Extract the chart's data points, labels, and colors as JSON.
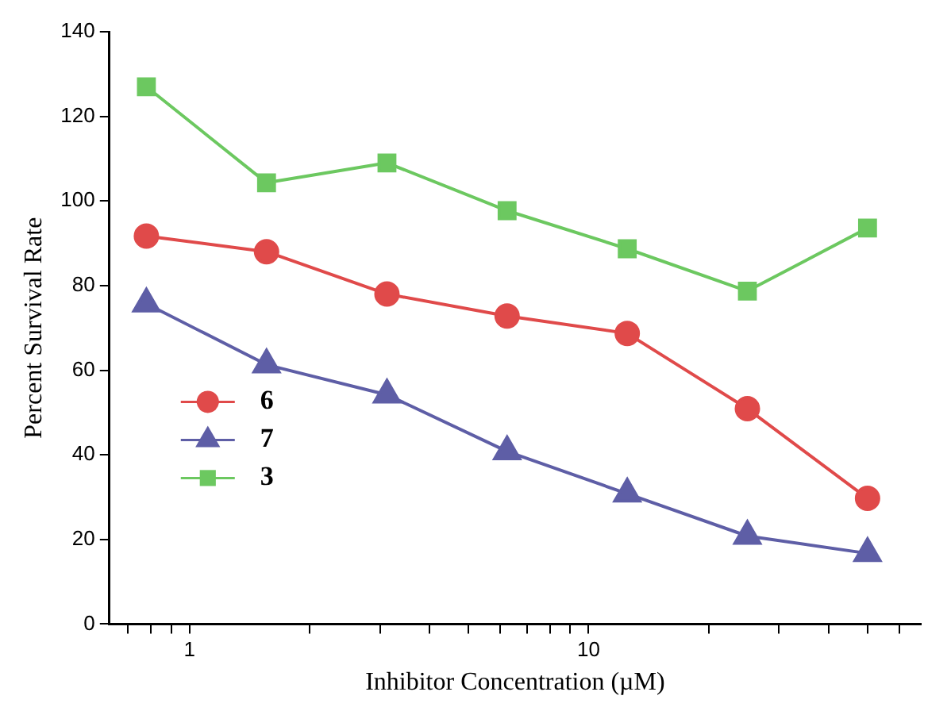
{
  "chart_data": {
    "type": "line",
    "xlabel": "Inhibitor Concentration (µM)",
    "ylabel": "Percent Survival Rate",
    "x": [
      0.78,
      1.56,
      3.125,
      6.25,
      12.5,
      25,
      50
    ],
    "series": [
      {
        "name": "6",
        "color": "#e04a4a",
        "marker": "circle",
        "values": [
          91.7,
          88,
          78,
          72.8,
          68.7,
          50.9,
          29.7
        ]
      },
      {
        "name": "7",
        "color": "#5e5ea6",
        "marker": "triangle",
        "values": [
          75.7,
          61.3,
          54.2,
          40.8,
          30.8,
          20.8,
          16.7
        ]
      },
      {
        "name": "3",
        "color": "#6cc860",
        "marker": "square",
        "values": [
          127,
          104.3,
          109,
          97.7,
          88.7,
          78.7,
          93.6
        ]
      }
    ],
    "log": "x",
    "xlim": [
      0.63,
      68
    ],
    "ylim": [
      0,
      140
    ],
    "xticks": [
      {
        "value": 0.7,
        "label": null
      },
      {
        "value": 0.8,
        "label": null
      },
      {
        "value": 0.9,
        "label": null
      },
      1,
      {
        "value": 2,
        "label": null
      },
      {
        "value": 3,
        "label": null
      },
      {
        "value": 4,
        "label": null
      },
      {
        "value": 5,
        "label": null
      },
      {
        "value": 6,
        "label": null
      },
      {
        "value": 7,
        "label": null
      },
      {
        "value": 8,
        "label": null
      },
      {
        "value": 9,
        "label": null
      },
      10,
      {
        "value": 20,
        "label": null
      },
      {
        "value": 30,
        "label": null
      },
      {
        "value": 40,
        "label": null
      },
      {
        "value": 50,
        "label": null
      },
      {
        "value": 60,
        "label": null
      }
    ],
    "yticks": [
      0,
      20,
      40,
      60,
      80,
      100,
      120,
      140
    ],
    "grid": false,
    "legend": "bottom left",
    "line_style": "solid"
  }
}
